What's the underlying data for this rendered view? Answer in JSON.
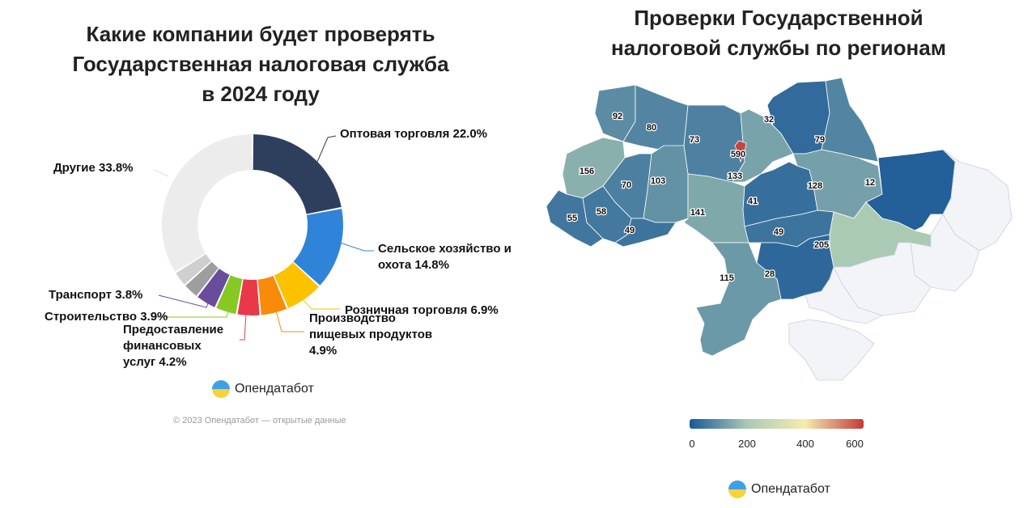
{
  "left_title": [
    "Какие компании будет проверять",
    "Государственная налоговая служба",
    "в 2024 году"
  ],
  "right_title": [
    "Проверки Государственной",
    "налоговой службы по регионам"
  ],
  "brand": "Опендатабот",
  "copyright": "© 2023 Опендатабот — открытые данные",
  "chart_data": [
    {
      "type": "pie",
      "variant": "donut",
      "title": "Какие компании будет проверять Государственная налоговая служба в 2024 году",
      "slices": [
        {
          "label": "Оптовая торговля 22.0%",
          "value": 22.0,
          "color": "#2e3f5e"
        },
        {
          "label": "Сельское хозяйство и охота 14.8%",
          "value": 14.8,
          "color": "#2f84da"
        },
        {
          "label": "Розничная торговля 6.9%",
          "value": 6.9,
          "color": "#fcc200"
        },
        {
          "label": "Производство пищевых продуктов 4.9%",
          "value": 4.9,
          "color": "#f98a0a"
        },
        {
          "label": "Предоставление финансовых услуг 4.2%",
          "value": 4.2,
          "color": "#e8384a"
        },
        {
          "label": "Строительство 3.9%",
          "value": 3.9,
          "color": "#86c923"
        },
        {
          "label": "Транспорт 3.8%",
          "value": 3.8,
          "color": "#6a4d9a"
        },
        {
          "label": "",
          "value": 2.9,
          "color": "#9e9e9e"
        },
        {
          "label": "",
          "value": 2.8,
          "color": "#cfcfcf"
        },
        {
          "label": "Другие 33.8%",
          "value": 33.8,
          "color": "#ececec"
        }
      ]
    },
    {
      "type": "choropleth",
      "title": "Проверки Государственной налоговой службы по регионам",
      "regions": [
        {
          "id": "volyn",
          "value": 92
        },
        {
          "id": "rivne",
          "value": 80
        },
        {
          "id": "zhytomyr",
          "value": 73
        },
        {
          "id": "kyiv-oblast",
          "value": 133
        },
        {
          "id": "kyiv-city",
          "value": 590
        },
        {
          "id": "chernihiv",
          "value": 32
        },
        {
          "id": "sumy",
          "value": 79
        },
        {
          "id": "lviv",
          "value": 156
        },
        {
          "id": "ternopil",
          "value": 70
        },
        {
          "id": "khmelnytskyi",
          "value": 103
        },
        {
          "id": "vinnytsia",
          "value": 141
        },
        {
          "id": "zakarpattia",
          "value": 55
        },
        {
          "id": "ivano-frankivsk",
          "value": 58
        },
        {
          "id": "chernivtsi",
          "value": 49
        },
        {
          "id": "cherkasy",
          "value": 41
        },
        {
          "id": "poltava",
          "value": 128
        },
        {
          "id": "kharkiv",
          "value": 12
        },
        {
          "id": "kirovohrad",
          "value": 49
        },
        {
          "id": "dnipropetrovsk",
          "value": 205
        },
        {
          "id": "mykolaiv",
          "value": 28
        },
        {
          "id": "odesa",
          "value": 115
        },
        {
          "id": "luhansk",
          "value": null
        },
        {
          "id": "donetsk",
          "value": null
        },
        {
          "id": "zaporizhzhia",
          "value": null
        },
        {
          "id": "kherson",
          "value": null
        },
        {
          "id": "crimea",
          "value": null
        }
      ],
      "legend": {
        "ticks": [
          "0",
          "200",
          "400",
          "600"
        ],
        "range": [
          0,
          600
        ],
        "colors": [
          "#1a5896",
          "#a9c9b4",
          "#f4ecb0",
          "#c23b3a"
        ]
      },
      "no_data_color": "#f3f4f8"
    }
  ]
}
